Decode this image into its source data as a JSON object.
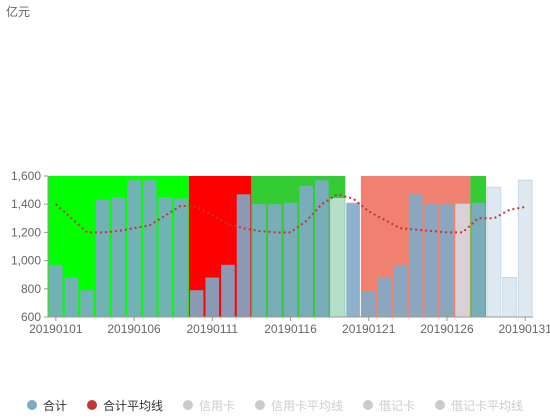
{
  "chart_data": {
    "type": "bar",
    "unit": "亿元",
    "y_ticks": [
      "600",
      "800",
      "1,000",
      "1,200",
      "1,400",
      "1,600"
    ],
    "ylim": [
      600,
      1600
    ],
    "x_tick_labels": [
      "20190101",
      "20190106",
      "20190111",
      "20190116",
      "20190121",
      "20190126",
      "20190131"
    ],
    "dates": [
      "20190101",
      "20190102",
      "20190103",
      "20190104",
      "20190105",
      "20190106",
      "20190107",
      "20190108",
      "20190109",
      "20190110",
      "20190111",
      "20190112",
      "20190113",
      "20190114",
      "20190115",
      "20190116",
      "20190117",
      "20190118",
      "20190119",
      "20190120",
      "20190121",
      "20190122",
      "20190123",
      "20190124",
      "20190125",
      "20190126",
      "20190127",
      "20190128",
      "20190129",
      "20190130",
      "20190131"
    ],
    "bar_values": [
      970,
      880,
      790,
      1430,
      1450,
      1570,
      1570,
      1450,
      1440,
      790,
      880,
      970,
      1470,
      1400,
      1400,
      1410,
      1530,
      1570,
      1440,
      1410,
      780,
      880,
      970,
      1470,
      1400,
      1400,
      1400,
      1410,
      1520,
      880,
      1570
    ],
    "average_line": [
      1400,
      1300,
      1200,
      1200,
      1210,
      1230,
      1250,
      1320,
      1390,
      1380,
      1320,
      1260,
      1230,
      1210,
      1200,
      1200,
      1280,
      1400,
      1470,
      1440,
      1350,
      1290,
      1230,
      1220,
      1210,
      1200,
      1200,
      1300,
      1300,
      1360,
      1380
    ],
    "bands": [
      {
        "from": 0,
        "to": 9,
        "color": "#00ff00"
      },
      {
        "from": 9,
        "to": 13,
        "color": "#ff0000"
      },
      {
        "from": 13,
        "to": 19,
        "color": "#33cc33"
      },
      {
        "from": 20,
        "to": 27,
        "color": "#f08070"
      },
      {
        "from": 27,
        "to": 28,
        "color": "#33cc33"
      }
    ],
    "legend": [
      {
        "label": "合计",
        "color": "#7faac8",
        "active": true
      },
      {
        "label": "合计平均线",
        "color": "#c23531",
        "active": true
      },
      {
        "label": "信用卡",
        "color": "#cccccc",
        "active": false
      },
      {
        "label": "信用卡平均线",
        "color": "#cccccc",
        "active": false
      },
      {
        "label": "借记卡",
        "color": "#cccccc",
        "active": false
      },
      {
        "label": "借记卡平均线",
        "color": "#cccccc",
        "active": false
      }
    ],
    "colors": {
      "bar": "#7faac8",
      "bar_faded": "#d6e4ef",
      "average": "#c23531",
      "axis": "#999999"
    }
  }
}
